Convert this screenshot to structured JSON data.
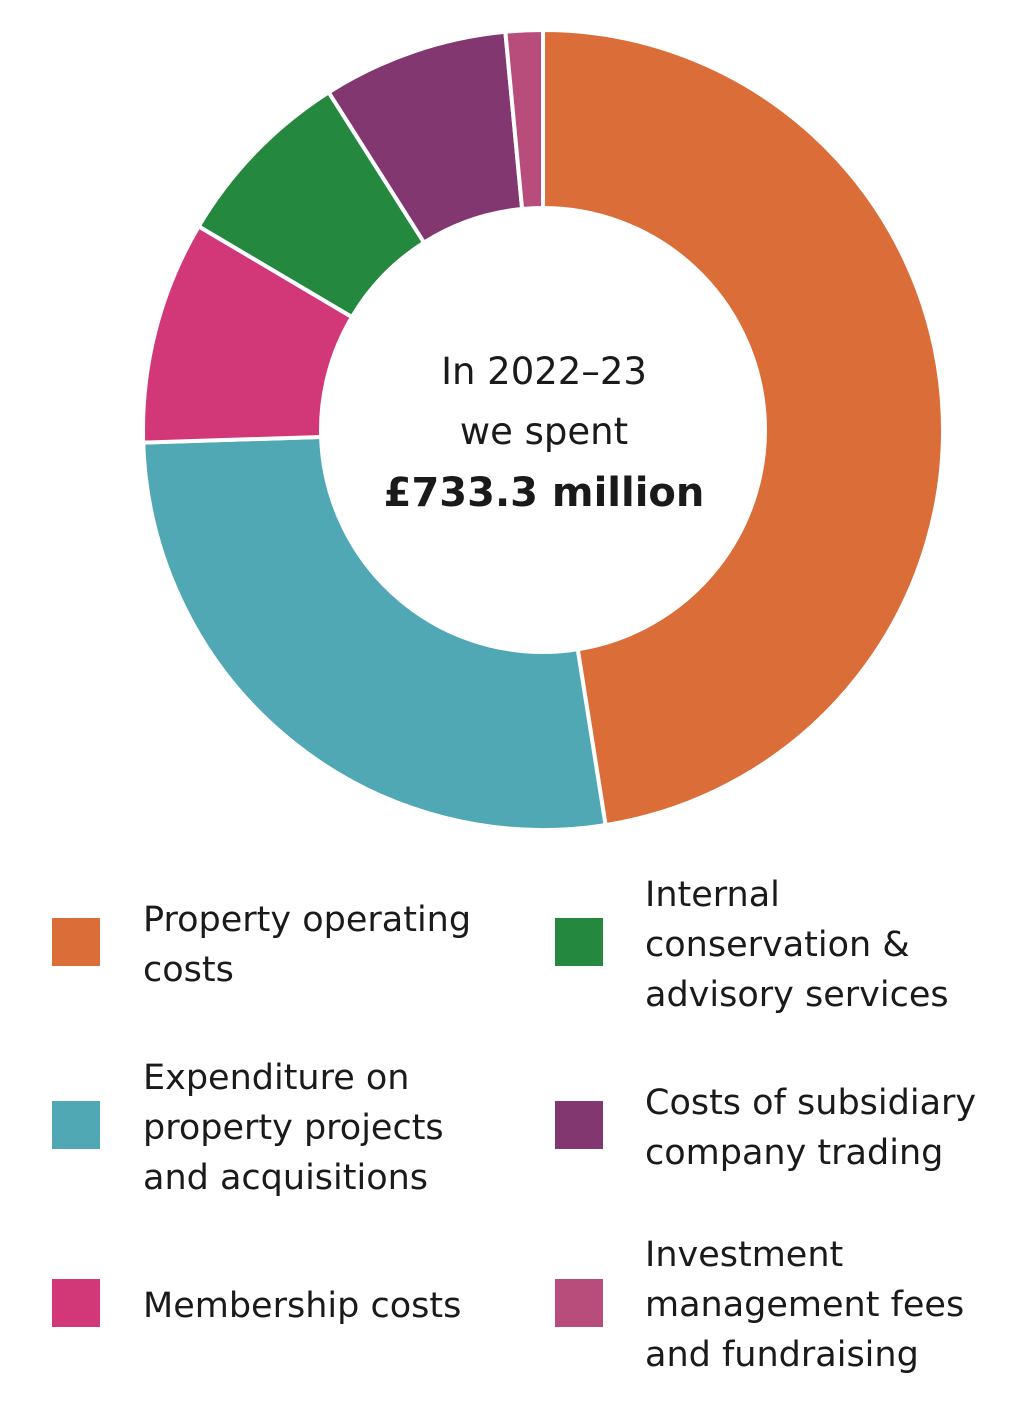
{
  "chart_data": {
    "type": "pie",
    "center_text": {
      "line1": "In 2022–23",
      "line2": "we spent",
      "line3": "£733.3 million"
    },
    "slices": [
      {
        "label": "Property operating costs",
        "legend_text": "Property operating\ncosts",
        "value": 47.5,
        "color": "#db6d39"
      },
      {
        "label": "Expenditure on property projects and acquisitions",
        "legend_text": "Expenditure on\nproperty projects\nand acquisitions",
        "value": 27.0,
        "color": "#4fa8b3"
      },
      {
        "label": "Membership costs",
        "legend_text": "Membership costs",
        "value": 9.0,
        "color": "#d23777"
      },
      {
        "label": "Internal conservation & advisory services",
        "legend_text": "Internal\nconservation &\nadvisory services",
        "value": 7.5,
        "color": "#24883f"
      },
      {
        "label": "Costs of subsidiary company trading",
        "legend_text": "Costs of subsidiary\ncompany trading",
        "value": 7.5,
        "color": "#823771"
      },
      {
        "label": "Investment management fees and fundraising",
        "legend_text": "Investment\nmanagement fees\nand fundraising",
        "value": 1.5,
        "color": "#b84d7b"
      }
    ],
    "legend_position": "bottom"
  }
}
